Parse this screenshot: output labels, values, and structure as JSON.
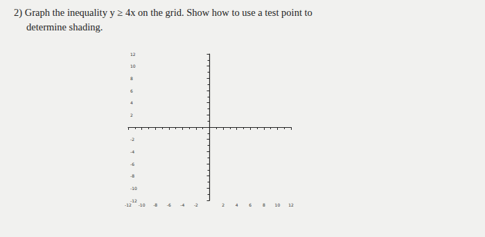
{
  "question": {
    "lines": [
      "2) Graph the inequality y ≥ 4x on the grid. Show how to use a test point to",
      "determine shading."
    ]
  },
  "chart_data": {
    "type": "scatter",
    "grid": false,
    "xlim": [
      -12,
      12
    ],
    "ylim": [
      -12,
      12
    ],
    "xticks": [
      -12,
      -10,
      -8,
      -6,
      -4,
      -2,
      2,
      4,
      6,
      8,
      10,
      12
    ],
    "yticks": [
      -12,
      -10,
      -8,
      -6,
      -4,
      -2,
      2,
      4,
      6,
      8,
      10,
      12
    ]
  }
}
